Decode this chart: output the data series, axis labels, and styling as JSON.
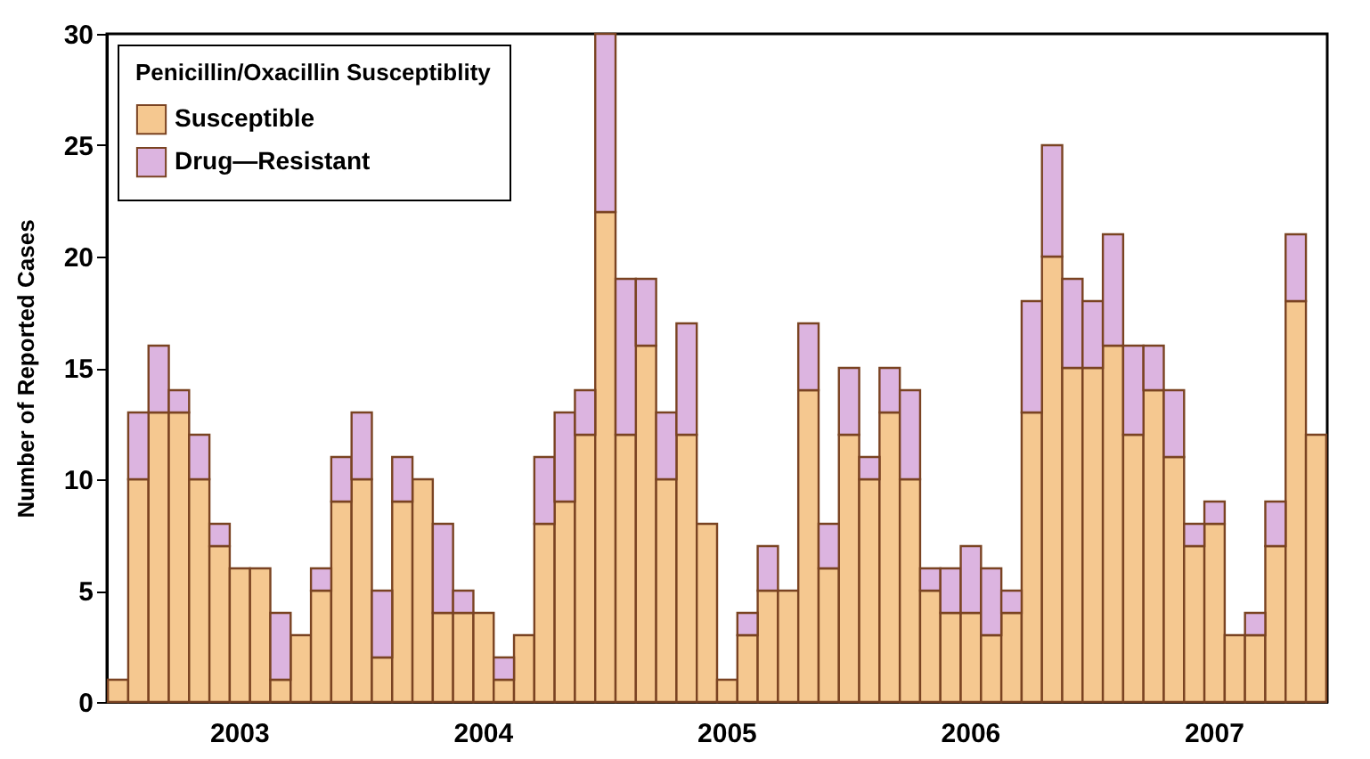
{
  "chart_data": {
    "type": "bar",
    "stacked": true,
    "ylabel": "Number of Reported Cases",
    "legend_title": "Penicillin/Oxacillin Susceptiblity",
    "legend": "top left",
    "grid": false,
    "categories": [
      null,
      null,
      null,
      null,
      null,
      null,
      "2003",
      null,
      null,
      null,
      null,
      null,
      null,
      null,
      null,
      null,
      null,
      null,
      "2004",
      null,
      null,
      null,
      null,
      null,
      null,
      null,
      null,
      null,
      null,
      null,
      "2005",
      null,
      null,
      null,
      null,
      null,
      null,
      null,
      null,
      null,
      null,
      null,
      "2006",
      null,
      null,
      null,
      null,
      null,
      null,
      null,
      null,
      null,
      null,
      null,
      "2007",
      null,
      null,
      null,
      null,
      null
    ],
    "ylim": [
      0,
      30
    ],
    "yticks": [
      0,
      5,
      10,
      15,
      20,
      25,
      30
    ],
    "series": [
      {
        "name": "Susceptible",
        "color": "#f5c890",
        "values": [
          1,
          10,
          13,
          13,
          10,
          7,
          6,
          6,
          1,
          3,
          5,
          9,
          10,
          2,
          9,
          10,
          4,
          4,
          4,
          1,
          3,
          8,
          9,
          12,
          22,
          12,
          16,
          10,
          12,
          8,
          1,
          3,
          5,
          5,
          14,
          6,
          12,
          10,
          13,
          10,
          5,
          4,
          4,
          3,
          4,
          13,
          20,
          15,
          15,
          16,
          12,
          14,
          11,
          7,
          8,
          3,
          3,
          7,
          18,
          12
        ]
      },
      {
        "name": "Drug—Resistant",
        "color": "#dcb4e0",
        "values": [
          0,
          3,
          3,
          1,
          2,
          1,
          0,
          0,
          3,
          0,
          1,
          2,
          3,
          3,
          2,
          0,
          4,
          1,
          0,
          1,
          0,
          3,
          4,
          2,
          8,
          7,
          3,
          3,
          5,
          0,
          0,
          1,
          2,
          0,
          3,
          2,
          3,
          1,
          2,
          4,
          1,
          2,
          3,
          3,
          1,
          5,
          5,
          4,
          3,
          5,
          4,
          2,
          3,
          1,
          1,
          0,
          1,
          2,
          3,
          0
        ]
      }
    ]
  }
}
